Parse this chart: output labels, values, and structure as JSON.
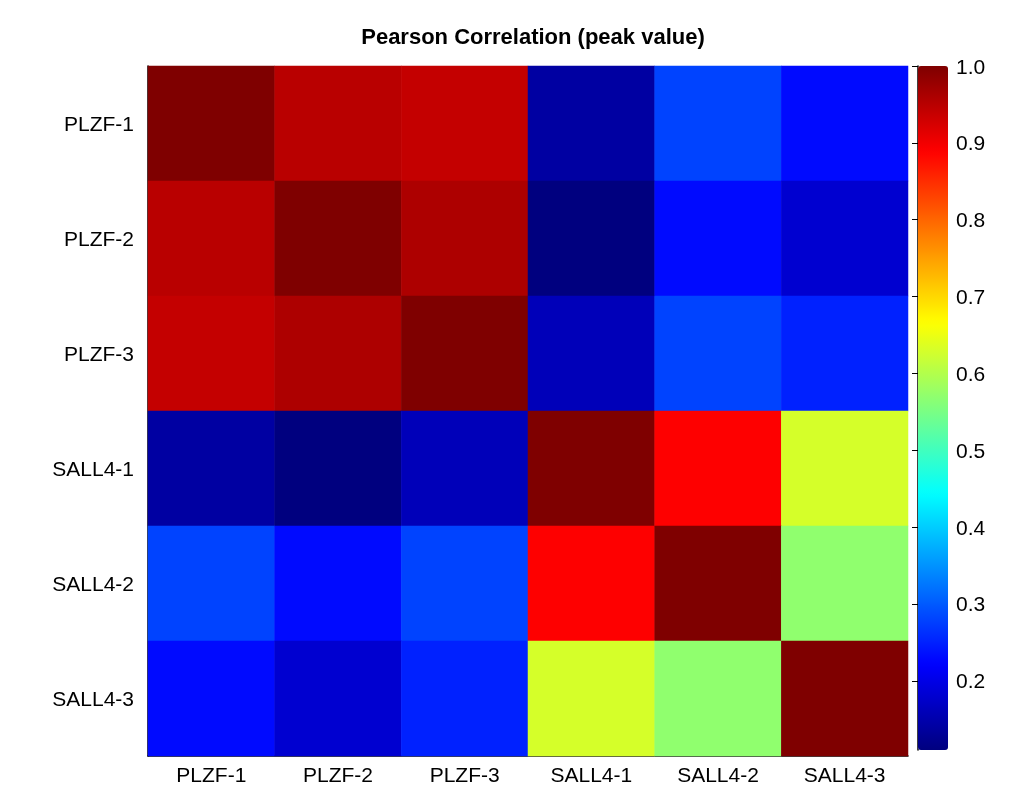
{
  "chart_data": {
    "type": "heatmap",
    "title": "Pearson Correlation (peak value)",
    "categories": [
      "PLZF-1",
      "PLZF-2",
      "PLZF-3",
      "SALL4-1",
      "SALL4-2",
      "SALL4-3"
    ],
    "y_categories": [
      "PLZF-1",
      "PLZF-2",
      "PLZF-3",
      "SALL4-1",
      "SALL4-2",
      "SALL4-3"
    ],
    "cells": [
      [
        1.0,
        0.95,
        0.94,
        0.14,
        0.28,
        0.23
      ],
      [
        0.95,
        1.0,
        0.96,
        0.11,
        0.23,
        0.18
      ],
      [
        0.94,
        0.96,
        1.0,
        0.16,
        0.28,
        0.25
      ],
      [
        0.14,
        0.11,
        0.16,
        1.0,
        0.89,
        0.63
      ],
      [
        0.28,
        0.23,
        0.28,
        0.89,
        1.0,
        0.57
      ],
      [
        0.23,
        0.18,
        0.25,
        0.63,
        0.57,
        1.0
      ]
    ],
    "clim": [
      0.11,
      1.0
    ],
    "cticks": [
      0.2,
      0.3,
      0.4,
      0.5,
      0.6,
      0.7,
      0.8,
      0.9,
      {
        "value": 1.0,
        "label": "1.0"
      }
    ]
  }
}
